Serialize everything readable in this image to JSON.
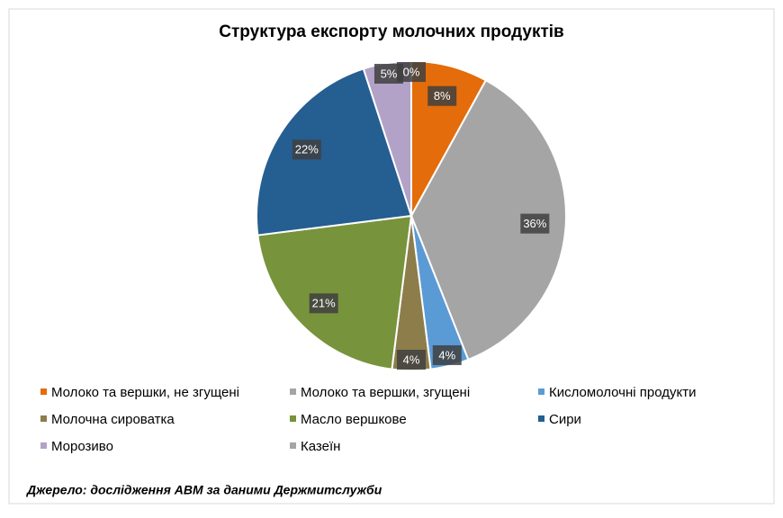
{
  "chart_data": {
    "type": "pie",
    "title": "Структура експорту молочних продуктів",
    "categories": [
      "Молоко та вершки, не згущені",
      "Молоко та вершки, згущені",
      "Кисломолочні продукти",
      "Молочна сироватка",
      "Масло вершкове",
      "Сири",
      "Морозиво",
      "Казеїн"
    ],
    "values": [
      8,
      36,
      4,
      4,
      21,
      22,
      5,
      0
    ],
    "value_labels": [
      "8%",
      "36%",
      "4%",
      "4%",
      "21%",
      "22%",
      "5%",
      "0%"
    ],
    "colors": [
      "#e46c0a",
      "#a5a5a5",
      "#5b9bd5",
      "#8c7d4b",
      "#77933c",
      "#255e91",
      "#b3a2c7",
      "#a5a5a5"
    ],
    "legend": "bottom"
  },
  "source": "Джерело: дослідження АВМ за даними Держмитслужби"
}
